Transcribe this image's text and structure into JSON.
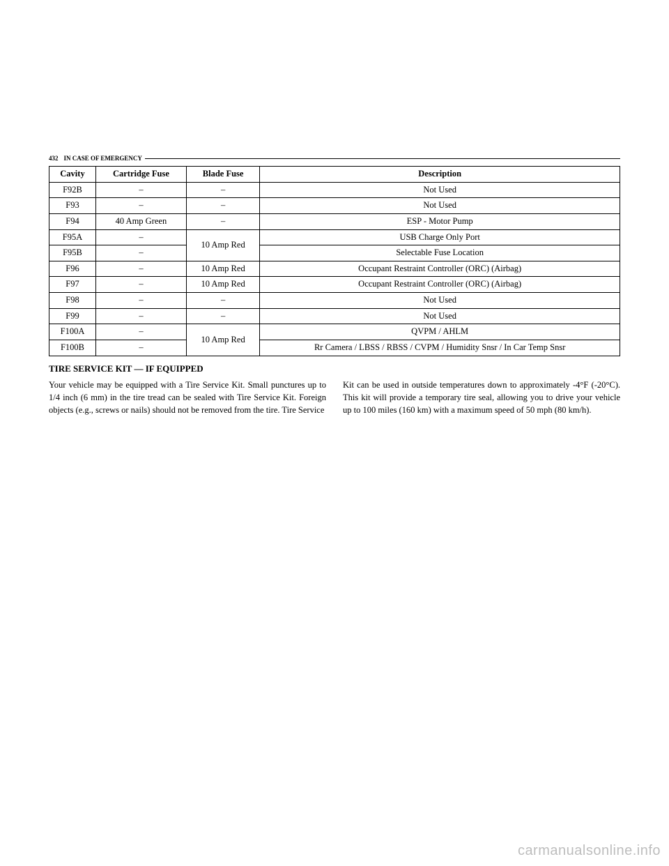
{
  "header": {
    "page_number": "432",
    "section": "IN CASE OF EMERGENCY"
  },
  "fuse_table": {
    "columns": [
      "Cavity",
      "Cartridge Fuse",
      "Blade Fuse",
      "Description"
    ],
    "rows": [
      {
        "cavity": "F92B",
        "cartridge": "–",
        "blade": "–",
        "desc": "Not Used"
      },
      {
        "cavity": "F93",
        "cartridge": "–",
        "blade": "–",
        "desc": "Not Used"
      },
      {
        "cavity": "F94",
        "cartridge": "40 Amp Green",
        "blade": "–",
        "desc": "ESP - Motor Pump"
      },
      {
        "cavity": "F95A",
        "cartridge": "–",
        "blade": "10 Amp Red",
        "desc": "USB Charge Only Port",
        "blade_rowspan": 2
      },
      {
        "cavity": "F95B",
        "cartridge": "–",
        "blade": null,
        "desc": "Selectable Fuse Location"
      },
      {
        "cavity": "F96",
        "cartridge": "–",
        "blade": "10 Amp Red",
        "desc": "Occupant Restraint Controller (ORC) (Airbag)"
      },
      {
        "cavity": "F97",
        "cartridge": "–",
        "blade": "10 Amp Red",
        "desc": "Occupant Restraint Controller (ORC) (Airbag)"
      },
      {
        "cavity": "F98",
        "cartridge": "–",
        "blade": "–",
        "desc": "Not Used"
      },
      {
        "cavity": "F99",
        "cartridge": "–",
        "blade": "–",
        "desc": "Not Used"
      },
      {
        "cavity": "F100A",
        "cartridge": "–",
        "blade": "10 Amp Red",
        "desc": "QVPM / AHLM",
        "blade_rowspan": 2
      },
      {
        "cavity": "F100B",
        "cartridge": "–",
        "blade": null,
        "desc": "Rr Camera / LBSS / RBSS / CVPM / Humidity Snsr / In Car Temp Snsr"
      }
    ]
  },
  "subheading": "TIRE SERVICE KIT — IF EQUIPPED",
  "body": {
    "para1": "Your vehicle may be equipped with a Tire Service Kit. Small punctures up to 1/4 inch (6 mm) in the tire tread can be sealed with Tire Service Kit. Foreign objects (e.g., screws or nails) should not be removed from the tire. Tire Service",
    "para2": "Kit can be used in outside temperatures down to approximately -4°F (-20°C). This kit will provide a temporary tire seal, allowing you to drive your vehicle up to 100 miles (160 km) with a maximum speed of 50 mph (80 km/h)."
  },
  "watermark": "carmanualsonline.info"
}
